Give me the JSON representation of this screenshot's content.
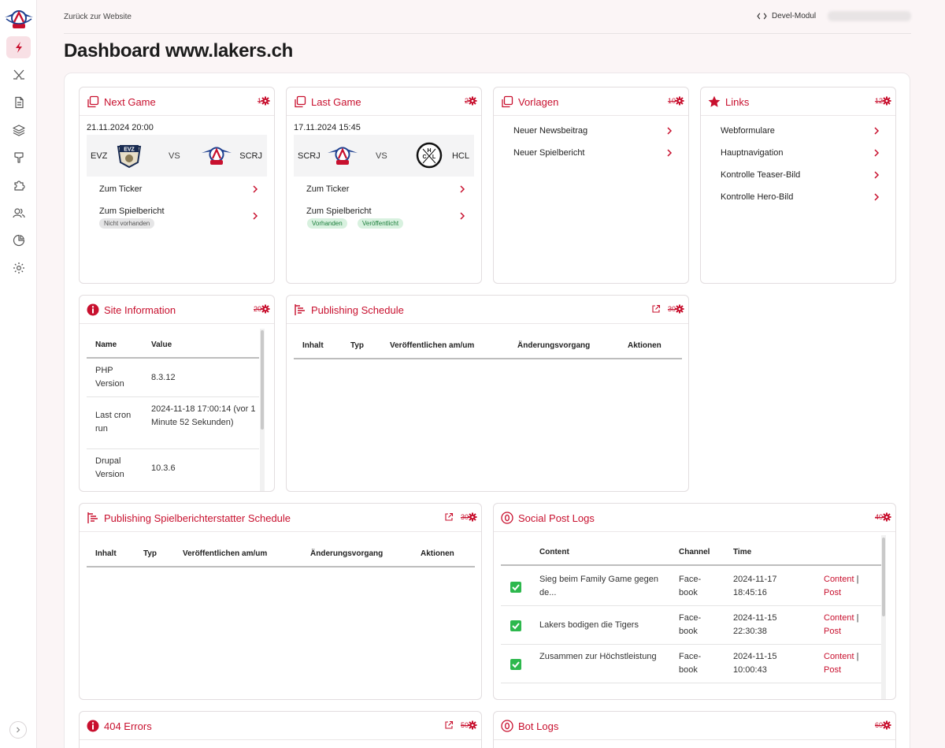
{
  "topbar": {
    "back_link": "Zurück zur Website",
    "devel_label": "Devel-Modul"
  },
  "page_title": "Dashboard www.lakers.ch",
  "next_game": {
    "title": "Next Game",
    "num": "1",
    "date": "21.11.2024 20:00",
    "home": "EVZ",
    "vs": "VS",
    "away": "SCRJ",
    "ticker": "Zum Ticker",
    "report": "Zum Spielbericht",
    "badge": "Nicht vorhanden"
  },
  "last_game": {
    "title": "Last Game",
    "num": "2",
    "date": "17.11.2024 15:45",
    "home": "SCRJ",
    "vs": "VS",
    "away": "HCL",
    "ticker": "Zum Ticker",
    "report": "Zum Spielbericht",
    "badge1": "Vorhanden",
    "badge2": "Veröffentlicht"
  },
  "vorlagen": {
    "title": "Vorlagen",
    "num": "10",
    "items": [
      "Neuer Newsbeitrag",
      "Neuer Spielbericht"
    ]
  },
  "links": {
    "title": "Links",
    "num": "12",
    "items": [
      "Webformulare",
      "Hauptnavigation",
      "Kontrolle Teaser-Bild",
      "Kontrolle Hero-Bild"
    ]
  },
  "site_info": {
    "title": "Site Information",
    "num": "20",
    "col_name": "Name",
    "col_value": "Value",
    "rows": [
      {
        "k": "PHP Version",
        "v": "8.3.12"
      },
      {
        "k": "Last cron run",
        "v": "2024-11-18 17:00:14 (vor 1 Minute 52 Sekunden)"
      },
      {
        "k": "Drupal Version",
        "v": "10.3.6"
      }
    ]
  },
  "publishing": {
    "title": "Publishing Schedule",
    "num": "30",
    "cols": [
      "Inhalt",
      "Typ",
      "Veröffentlichen am/um",
      "Änderungsvorgang",
      "Aktionen"
    ]
  },
  "publishing_sb": {
    "title": "Publishing Spielberichterstatter Schedule",
    "num": "30",
    "cols": [
      "Inhalt",
      "Typ",
      "Veröffentlichen am/um",
      "Änderungsvorgang",
      "Aktionen"
    ]
  },
  "social": {
    "title": "Social Post Logs",
    "num": "40",
    "cols": [
      "Content",
      "Channel",
      "Time"
    ],
    "rows": [
      {
        "content": "Sieg beim Family Game gegen de...",
        "channel": "Face-book",
        "time": "2024-11-17 18:45:16"
      },
      {
        "content": "Lakers bodigen die Tigers",
        "channel": "Face-book",
        "time": "2024-11-15 22:30:38"
      },
      {
        "content": "Zusammen zur Höchstleistung",
        "channel": "Face-book",
        "time": "2024-11-15 10:00:43"
      }
    ],
    "action_content": "Content",
    "action_sep": "|",
    "action_post": "Post"
  },
  "errors404": {
    "title": "404 Errors",
    "num": "50"
  },
  "botlogs": {
    "title": "Bot Logs",
    "num": "60"
  },
  "colors": {
    "accent": "#c8102e",
    "background": "#fbf5f6",
    "badge_green": "#d8f1df",
    "badge_grey": "#e5e5e6"
  }
}
